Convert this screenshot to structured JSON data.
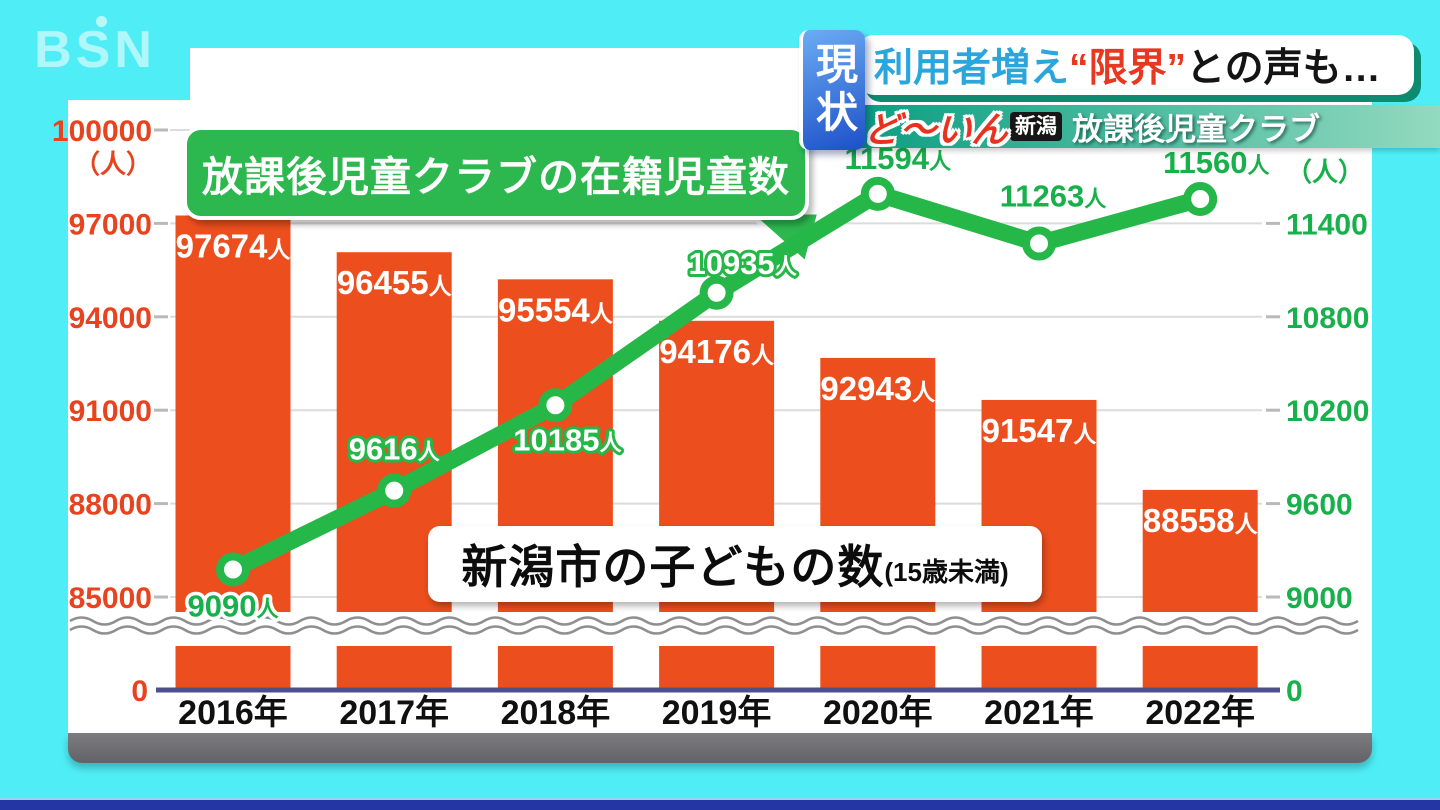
{
  "broadcaster_logo": "BSN",
  "header": {
    "status_badge": "現状",
    "headline_part1": "利用者増え",
    "headline_part2": "“限界”",
    "headline_part3": "との声も…",
    "program_logo": "ど〜いん",
    "program_logo_badge": "新潟",
    "program_topic": "放課後児童クラブ"
  },
  "chart_data": {
    "type": "bar+line",
    "categories": [
      "2016年",
      "2017年",
      "2018年",
      "2019年",
      "2020年",
      "2021年",
      "2022年"
    ],
    "series": [
      {
        "name": "新潟市の子どもの数(15歳未満)",
        "type": "bar",
        "axis": "left",
        "color": "#ec4f1d",
        "values": [
          97674,
          96455,
          95554,
          94176,
          92943,
          91547,
          88558
        ],
        "value_suffix": "人"
      },
      {
        "name": "放課後児童クラブの在籍児童数",
        "type": "line",
        "axis": "right",
        "color": "#25b748",
        "values": [
          9090,
          9616,
          10185,
          10935,
          11594,
          11263,
          11560
        ],
        "value_suffix": "人"
      }
    ],
    "left_axis": {
      "unit": "（人）",
      "ticks": [
        "100000",
        "97000",
        "94000",
        "91000",
        "88000",
        "85000"
      ],
      "zero_label": "0",
      "color": "#e8431f",
      "axis_break": true
    },
    "right_axis": {
      "unit": "（人）",
      "ticks": [
        "11400",
        "10800",
        "10200",
        "9600",
        "9000"
      ],
      "zero_label": "0",
      "color": "#17b04a",
      "axis_break": true
    },
    "annotations": {
      "line_callout": "放課後児童クラブの在籍児童数",
      "bar_callout_main": "新潟市の子どもの数",
      "bar_callout_sub": "(15歳未満)"
    },
    "grid": true,
    "legend_position": "none"
  }
}
